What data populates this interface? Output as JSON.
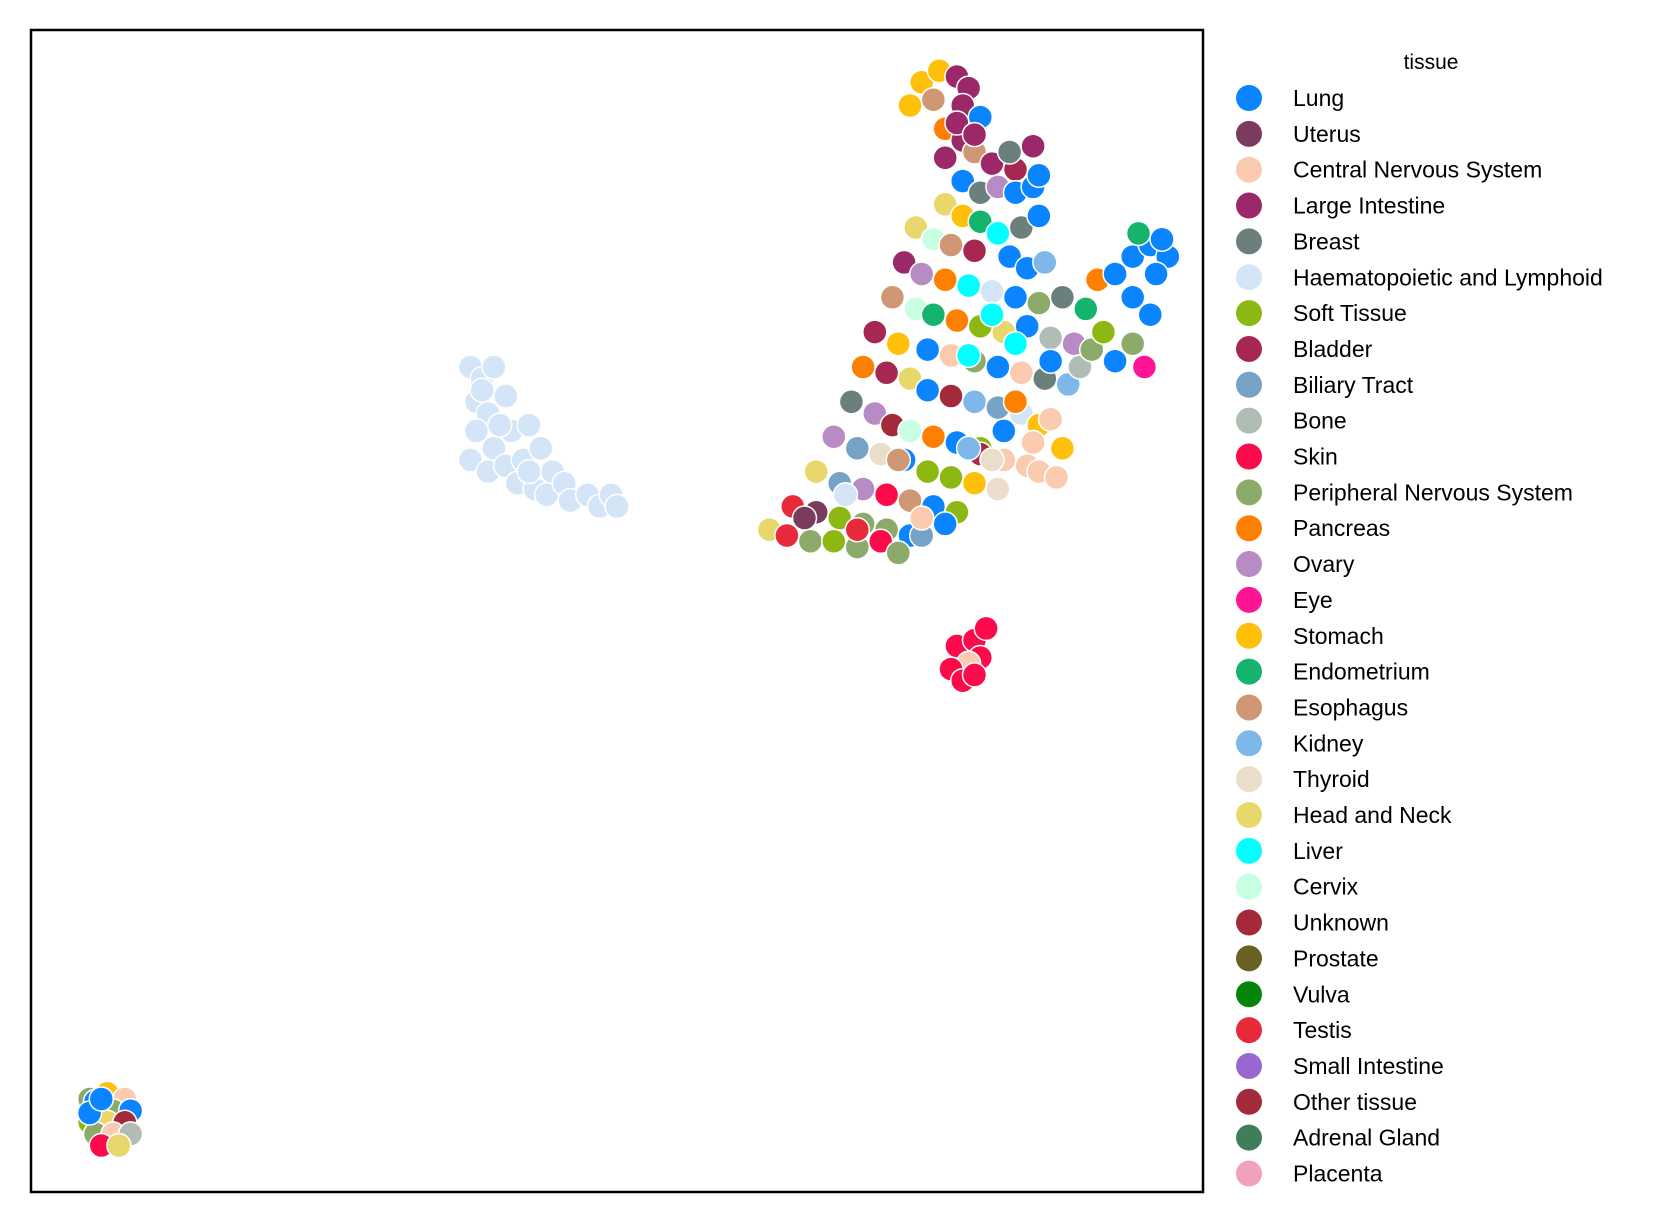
{
  "chart_data": {
    "type": "scatter",
    "title": "",
    "xlabel": "",
    "ylabel": "",
    "axes_visible": false,
    "grid": false,
    "xlim": [
      0,
      100
    ],
    "ylim": [
      0,
      100
    ],
    "legend": {
      "title": "tissue",
      "placement": "outside-right"
    },
    "series": [
      {
        "name": "Lung",
        "color": "#0a84ff"
      },
      {
        "name": "Uterus",
        "color": "#7b3b5e"
      },
      {
        "name": "Central Nervous System",
        "color": "#fbcbb0"
      },
      {
        "name": "Large Intestine",
        "color": "#9b2868"
      },
      {
        "name": "Breast",
        "color": "#6b7f7d"
      },
      {
        "name": "Haematopoietic and Lymphoid",
        "color": "#d4e5f7"
      },
      {
        "name": "Soft Tissue",
        "color": "#8db814"
      },
      {
        "name": "Bladder",
        "color": "#a6274f"
      },
      {
        "name": "Biliary Tract",
        "color": "#76a2c6"
      },
      {
        "name": "Bone",
        "color": "#b1bdb4"
      },
      {
        "name": "Skin",
        "color": "#fd0a4a"
      },
      {
        "name": "Peripheral Nervous System",
        "color": "#8cab6b"
      },
      {
        "name": "Pancreas",
        "color": "#ff8000"
      },
      {
        "name": "Ovary",
        "color": "#b88bc5"
      },
      {
        "name": "Eye",
        "color": "#ff1593"
      },
      {
        "name": "Stomach",
        "color": "#ffc00b"
      },
      {
        "name": "Endometrium",
        "color": "#14b46d"
      },
      {
        "name": "Esophagus",
        "color": "#cf9774"
      },
      {
        "name": "Kidney",
        "color": "#7eb7ea"
      },
      {
        "name": "Thyroid",
        "color": "#eaddca"
      },
      {
        "name": "Head and Neck",
        "color": "#e8d86c"
      },
      {
        "name": "Liver",
        "color": "#00ffff"
      },
      {
        "name": "Cervix",
        "color": "#c8ffe3"
      },
      {
        "name": "Unknown",
        "color": "#a22a3a"
      },
      {
        "name": "Prostate",
        "color": "#6a5f24"
      },
      {
        "name": "Vulva",
        "color": "#06850b"
      },
      {
        "name": "Testis",
        "color": "#e8293a"
      },
      {
        "name": "Small Intestine",
        "color": "#9a67d1"
      },
      {
        "name": "Other tissue",
        "color": "#a22a3a"
      },
      {
        "name": "Adrenal Gland",
        "color": "#3f7e58"
      },
      {
        "name": "Placenta",
        "color": "#f2a1bd"
      }
    ],
    "points": [
      {
        "x": 37.5,
        "y": 71.0,
        "s": 5
      },
      {
        "x": 38.5,
        "y": 70.0,
        "s": 5
      },
      {
        "x": 39.5,
        "y": 71.0,
        "s": 5
      },
      {
        "x": 38.0,
        "y": 68.0,
        "s": 5
      },
      {
        "x": 39.0,
        "y": 67.0,
        "s": 5
      },
      {
        "x": 40.5,
        "y": 68.5,
        "s": 5
      },
      {
        "x": 38.0,
        "y": 65.5,
        "s": 5
      },
      {
        "x": 39.5,
        "y": 64.0,
        "s": 5
      },
      {
        "x": 41.0,
        "y": 65.5,
        "s": 5
      },
      {
        "x": 42.5,
        "y": 66.0,
        "s": 5
      },
      {
        "x": 37.5,
        "y": 63.0,
        "s": 5
      },
      {
        "x": 39.0,
        "y": 62.0,
        "s": 5
      },
      {
        "x": 40.5,
        "y": 62.5,
        "s": 5
      },
      {
        "x": 42.0,
        "y": 63.0,
        "s": 5
      },
      {
        "x": 43.5,
        "y": 64.0,
        "s": 5
      },
      {
        "x": 44.5,
        "y": 62.0,
        "s": 5
      },
      {
        "x": 41.5,
        "y": 61.0,
        "s": 5
      },
      {
        "x": 43.0,
        "y": 60.5,
        "s": 5
      },
      {
        "x": 44.0,
        "y": 60.0,
        "s": 5
      },
      {
        "x": 45.5,
        "y": 61.0,
        "s": 5
      },
      {
        "x": 46.0,
        "y": 59.5,
        "s": 5
      },
      {
        "x": 47.5,
        "y": 60.0,
        "s": 5
      },
      {
        "x": 48.5,
        "y": 59.0,
        "s": 5
      },
      {
        "x": 49.5,
        "y": 60.0,
        "s": 5
      },
      {
        "x": 50.0,
        "y": 59.0,
        "s": 5
      },
      {
        "x": 38.5,
        "y": 69.0,
        "s": 5
      },
      {
        "x": 40.0,
        "y": 66.0,
        "s": 5
      },
      {
        "x": 42.5,
        "y": 62.0,
        "s": 5
      },
      {
        "x": 76.0,
        "y": 95.5,
        "s": 15
      },
      {
        "x": 77.5,
        "y": 96.5,
        "s": 15
      },
      {
        "x": 79.0,
        "y": 96.0,
        "s": 3
      },
      {
        "x": 80.0,
        "y": 95.0,
        "s": 3
      },
      {
        "x": 75.0,
        "y": 93.5,
        "s": 15
      },
      {
        "x": 77.0,
        "y": 94.0,
        "s": 17
      },
      {
        "x": 79.5,
        "y": 93.5,
        "s": 3
      },
      {
        "x": 81.0,
        "y": 92.5,
        "s": 0
      },
      {
        "x": 78.0,
        "y": 91.5,
        "s": 12
      },
      {
        "x": 79.5,
        "y": 90.5,
        "s": 3
      },
      {
        "x": 80.5,
        "y": 89.5,
        "s": 17
      },
      {
        "x": 82.0,
        "y": 88.5,
        "s": 3
      },
      {
        "x": 84.0,
        "y": 88.0,
        "s": 7
      },
      {
        "x": 79.5,
        "y": 87.0,
        "s": 0
      },
      {
        "x": 81.0,
        "y": 86.0,
        "s": 4
      },
      {
        "x": 82.5,
        "y": 86.5,
        "s": 13
      },
      {
        "x": 84.0,
        "y": 86.0,
        "s": 0
      },
      {
        "x": 85.5,
        "y": 86.5,
        "s": 0
      },
      {
        "x": 78.0,
        "y": 85.0,
        "s": 20
      },
      {
        "x": 79.5,
        "y": 84.0,
        "s": 15
      },
      {
        "x": 81.0,
        "y": 83.5,
        "s": 16
      },
      {
        "x": 82.5,
        "y": 82.5,
        "s": 21
      },
      {
        "x": 84.5,
        "y": 83.0,
        "s": 4
      },
      {
        "x": 86.0,
        "y": 84.0,
        "s": 0
      },
      {
        "x": 75.5,
        "y": 83.0,
        "s": 20
      },
      {
        "x": 77.0,
        "y": 82.0,
        "s": 22
      },
      {
        "x": 78.5,
        "y": 81.5,
        "s": 17
      },
      {
        "x": 80.5,
        "y": 81.0,
        "s": 7
      },
      {
        "x": 83.5,
        "y": 80.5,
        "s": 0
      },
      {
        "x": 85.0,
        "y": 79.5,
        "s": 0
      },
      {
        "x": 86.5,
        "y": 80.0,
        "s": 18
      },
      {
        "x": 74.5,
        "y": 80.0,
        "s": 3
      },
      {
        "x": 76.0,
        "y": 79.0,
        "s": 13
      },
      {
        "x": 78.0,
        "y": 78.5,
        "s": 12
      },
      {
        "x": 80.0,
        "y": 78.0,
        "s": 21
      },
      {
        "x": 82.0,
        "y": 77.5,
        "s": 5
      },
      {
        "x": 84.0,
        "y": 77.0,
        "s": 0
      },
      {
        "x": 86.0,
        "y": 76.5,
        "s": 11
      },
      {
        "x": 88.0,
        "y": 77.0,
        "s": 4
      },
      {
        "x": 73.5,
        "y": 77.0,
        "s": 17
      },
      {
        "x": 75.5,
        "y": 76.0,
        "s": 22
      },
      {
        "x": 77.0,
        "y": 75.5,
        "s": 16
      },
      {
        "x": 79.0,
        "y": 75.0,
        "s": 12
      },
      {
        "x": 81.0,
        "y": 74.5,
        "s": 6
      },
      {
        "x": 83.0,
        "y": 74.0,
        "s": 20
      },
      {
        "x": 85.0,
        "y": 74.5,
        "s": 0
      },
      {
        "x": 87.0,
        "y": 73.5,
        "s": 9
      },
      {
        "x": 89.0,
        "y": 73.0,
        "s": 13
      },
      {
        "x": 72.0,
        "y": 74.0,
        "s": 7
      },
      {
        "x": 74.0,
        "y": 73.0,
        "s": 15
      },
      {
        "x": 76.5,
        "y": 72.5,
        "s": 0
      },
      {
        "x": 78.5,
        "y": 72.0,
        "s": 2
      },
      {
        "x": 80.5,
        "y": 71.5,
        "s": 11
      },
      {
        "x": 82.5,
        "y": 71.0,
        "s": 0
      },
      {
        "x": 84.5,
        "y": 70.5,
        "s": 2
      },
      {
        "x": 86.5,
        "y": 70.0,
        "s": 4
      },
      {
        "x": 88.5,
        "y": 69.5,
        "s": 18
      },
      {
        "x": 71.0,
        "y": 71.0,
        "s": 12
      },
      {
        "x": 73.0,
        "y": 70.5,
        "s": 7
      },
      {
        "x": 75.0,
        "y": 70.0,
        "s": 20
      },
      {
        "x": 76.5,
        "y": 69.0,
        "s": 0
      },
      {
        "x": 78.5,
        "y": 68.5,
        "s": 23
      },
      {
        "x": 80.5,
        "y": 68.0,
        "s": 18
      },
      {
        "x": 82.5,
        "y": 67.5,
        "s": 8
      },
      {
        "x": 84.5,
        "y": 67.0,
        "s": 5
      },
      {
        "x": 86.0,
        "y": 66.0,
        "s": 15
      },
      {
        "x": 70.0,
        "y": 68.0,
        "s": 4
      },
      {
        "x": 72.0,
        "y": 67.0,
        "s": 13
      },
      {
        "x": 73.5,
        "y": 66.0,
        "s": 23
      },
      {
        "x": 75.0,
        "y": 65.5,
        "s": 22
      },
      {
        "x": 77.0,
        "y": 65.0,
        "s": 12
      },
      {
        "x": 79.0,
        "y": 64.5,
        "s": 0
      },
      {
        "x": 81.0,
        "y": 64.0,
        "s": 6
      },
      {
        "x": 83.0,
        "y": 63.0,
        "s": 2
      },
      {
        "x": 85.0,
        "y": 62.5,
        "s": 2
      },
      {
        "x": 68.5,
        "y": 65.0,
        "s": 13
      },
      {
        "x": 70.5,
        "y": 64.0,
        "s": 8
      },
      {
        "x": 72.5,
        "y": 63.5,
        "s": 19
      },
      {
        "x": 74.5,
        "y": 63.0,
        "s": 0
      },
      {
        "x": 76.5,
        "y": 62.0,
        "s": 6
      },
      {
        "x": 78.5,
        "y": 61.5,
        "s": 6
      },
      {
        "x": 80.5,
        "y": 61.0,
        "s": 15
      },
      {
        "x": 82.5,
        "y": 60.5,
        "s": 19
      },
      {
        "x": 67.0,
        "y": 62.0,
        "s": 20
      },
      {
        "x": 69.0,
        "y": 61.0,
        "s": 8
      },
      {
        "x": 71.0,
        "y": 60.5,
        "s": 13
      },
      {
        "x": 73.0,
        "y": 60.0,
        "s": 10
      },
      {
        "x": 75.0,
        "y": 59.5,
        "s": 17
      },
      {
        "x": 77.0,
        "y": 59.0,
        "s": 0
      },
      {
        "x": 79.0,
        "y": 58.5,
        "s": 6
      },
      {
        "x": 65.0,
        "y": 59.0,
        "s": 26
      },
      {
        "x": 67.0,
        "y": 58.5,
        "s": 1
      },
      {
        "x": 69.0,
        "y": 58.0,
        "s": 6
      },
      {
        "x": 71.0,
        "y": 57.5,
        "s": 11
      },
      {
        "x": 73.0,
        "y": 57.0,
        "s": 11
      },
      {
        "x": 75.0,
        "y": 56.5,
        "s": 0
      },
      {
        "x": 63.0,
        "y": 57.0,
        "s": 20
      },
      {
        "x": 64.5,
        "y": 56.5,
        "s": 26
      },
      {
        "x": 66.5,
        "y": 56.0,
        "s": 11
      },
      {
        "x": 68.5,
        "y": 56.0,
        "s": 6
      },
      {
        "x": 70.5,
        "y": 55.5,
        "s": 11
      },
      {
        "x": 72.5,
        "y": 56.0,
        "s": 10
      },
      {
        "x": 74.0,
        "y": 55.0,
        "s": 11
      },
      {
        "x": 76.0,
        "y": 56.5,
        "s": 8
      },
      {
        "x": 74.0,
        "y": 63.0,
        "s": 17
      },
      {
        "x": 76.0,
        "y": 58.0,
        "s": 2
      },
      {
        "x": 78.0,
        "y": 57.5,
        "s": 0
      },
      {
        "x": 81.0,
        "y": 63.5,
        "s": 7
      },
      {
        "x": 83.0,
        "y": 65.5,
        "s": 0
      },
      {
        "x": 84.0,
        "y": 68.0,
        "s": 12
      },
      {
        "x": 85.5,
        "y": 64.5,
        "s": 2
      },
      {
        "x": 87.0,
        "y": 66.5,
        "s": 2
      },
      {
        "x": 88.0,
        "y": 64.0,
        "s": 15
      },
      {
        "x": 86.0,
        "y": 62.0,
        "s": 2
      },
      {
        "x": 87.5,
        "y": 61.5,
        "s": 2
      },
      {
        "x": 80.0,
        "y": 72.0,
        "s": 21
      },
      {
        "x": 82.0,
        "y": 75.5,
        "s": 21
      },
      {
        "x": 84.0,
        "y": 73.0,
        "s": 21
      },
      {
        "x": 87.0,
        "y": 71.5,
        "s": 0
      },
      {
        "x": 89.5,
        "y": 71.0,
        "s": 9
      },
      {
        "x": 90.5,
        "y": 72.5,
        "s": 11
      },
      {
        "x": 91.5,
        "y": 74.0,
        "s": 6
      },
      {
        "x": 92.5,
        "y": 71.5,
        "s": 0
      },
      {
        "x": 94.0,
        "y": 73.0,
        "s": 11
      },
      {
        "x": 90.0,
        "y": 76.0,
        "s": 16
      },
      {
        "x": 91.0,
        "y": 78.5,
        "s": 12
      },
      {
        "x": 92.5,
        "y": 79.0,
        "s": 0
      },
      {
        "x": 94.0,
        "y": 80.5,
        "s": 0
      },
      {
        "x": 95.5,
        "y": 81.5,
        "s": 0
      },
      {
        "x": 97.0,
        "y": 80.5,
        "s": 0
      },
      {
        "x": 96.0,
        "y": 79.0,
        "s": 0
      },
      {
        "x": 94.0,
        "y": 77.0,
        "s": 0
      },
      {
        "x": 95.5,
        "y": 75.5,
        "s": 0
      },
      {
        "x": 94.5,
        "y": 82.5,
        "s": 16
      },
      {
        "x": 96.5,
        "y": 82.0,
        "s": 0
      },
      {
        "x": 95.0,
        "y": 71.0,
        "s": 14
      },
      {
        "x": 85.5,
        "y": 90.0,
        "s": 3
      },
      {
        "x": 86.0,
        "y": 87.5,
        "s": 0
      },
      {
        "x": 83.5,
        "y": 89.5,
        "s": 4
      },
      {
        "x": 79.0,
        "y": 92.0,
        "s": 3
      },
      {
        "x": 80.5,
        "y": 91.0,
        "s": 3
      },
      {
        "x": 78.0,
        "y": 89.0,
        "s": 3
      },
      {
        "x": 80.0,
        "y": 64.0,
        "s": 18
      },
      {
        "x": 82.0,
        "y": 63.0,
        "s": 19
      },
      {
        "x": 70.5,
        "y": 57.0,
        "s": 26
      },
      {
        "x": 66.0,
        "y": 58.0,
        "s": 1
      },
      {
        "x": 69.5,
        "y": 60.0,
        "s": 5
      },
      {
        "x": 79.0,
        "y": 47.0,
        "s": 10
      },
      {
        "x": 80.5,
        "y": 47.5,
        "s": 10
      },
      {
        "x": 81.0,
        "y": 46.0,
        "s": 10
      },
      {
        "x": 80.0,
        "y": 45.5,
        "s": 2
      },
      {
        "x": 78.5,
        "y": 45.0,
        "s": 10
      },
      {
        "x": 79.5,
        "y": 44.0,
        "s": 10
      },
      {
        "x": 80.5,
        "y": 44.5,
        "s": 10
      },
      {
        "x": 81.5,
        "y": 48.5,
        "s": 10
      },
      {
        "x": 5.0,
        "y": 8.0,
        "s": 11
      },
      {
        "x": 6.5,
        "y": 8.5,
        "s": 15
      },
      {
        "x": 8.0,
        "y": 8.0,
        "s": 2
      },
      {
        "x": 5.5,
        "y": 7.0,
        "s": 18
      },
      {
        "x": 7.0,
        "y": 7.0,
        "s": 11
      },
      {
        "x": 8.5,
        "y": 7.0,
        "s": 0
      },
      {
        "x": 5.0,
        "y": 6.0,
        "s": 6
      },
      {
        "x": 6.5,
        "y": 6.0,
        "s": 20
      },
      {
        "x": 8.0,
        "y": 6.0,
        "s": 23
      },
      {
        "x": 5.5,
        "y": 5.0,
        "s": 11
      },
      {
        "x": 7.0,
        "y": 5.0,
        "s": 2
      },
      {
        "x": 8.5,
        "y": 5.0,
        "s": 9
      },
      {
        "x": 6.0,
        "y": 4.0,
        "s": 10
      },
      {
        "x": 7.5,
        "y": 4.0,
        "s": 20
      },
      {
        "x": 5.5,
        "y": 7.8,
        "s": 0
      },
      {
        "x": 5.0,
        "y": 6.8,
        "s": 0
      },
      {
        "x": 6.0,
        "y": 8.0,
        "s": 0
      }
    ]
  }
}
